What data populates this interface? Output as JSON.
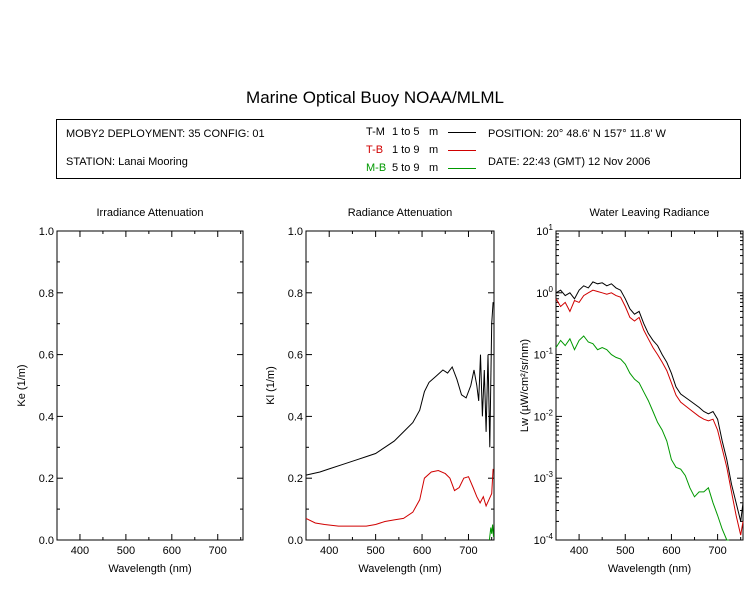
{
  "title": "Marine Optical Buoy NOAA/MLML",
  "info": {
    "deployment": "MOBY2 DEPLOYMENT: 35 CONFIG: 01",
    "station": "STATION: Lanai Mooring",
    "position": "POSITION: 20° 48.6' N   157° 11.8' W",
    "date": "DATE: 22:43 (GMT) 12 Nov 2006"
  },
  "legend": [
    {
      "code": "T-M",
      "range": "1 to 5",
      "unit": "m",
      "color": "#000000"
    },
    {
      "code": "T-B",
      "range": "1 to 9",
      "unit": "m",
      "color": "#d00000"
    },
    {
      "code": "M-B",
      "range": "5 to 9",
      "unit": "m",
      "color": "#009900"
    }
  ],
  "chart_data": [
    {
      "type": "line",
      "title": "Irradiance Attenuation",
      "xlabel": "Wavelength (nm)",
      "ylabel": "Ke  (1/m)",
      "xlim": [
        350,
        755
      ],
      "ylim": [
        0,
        1
      ],
      "xticks": [
        "400",
        "500",
        "600",
        "700"
      ],
      "yticks": [
        "0.0",
        "0.2",
        "0.4",
        "0.6",
        "0.8",
        "1.0"
      ],
      "series": []
    },
    {
      "type": "line",
      "title": "Radiance Attenuation",
      "xlabel": "Wavelength (nm)",
      "ylabel": "Kl  (1/m)",
      "xlim": [
        350,
        755
      ],
      "ylim": [
        0,
        1
      ],
      "xticks": [
        "400",
        "500",
        "600",
        "700"
      ],
      "yticks": [
        "0.0",
        "0.2",
        "0.4",
        "0.6",
        "0.8",
        "1.0"
      ],
      "series": [
        {
          "name": "T-M",
          "color": "#000000",
          "x": [
            350,
            380,
            400,
            430,
            460,
            480,
            500,
            520,
            540,
            560,
            580,
            595,
            605,
            615,
            630,
            645,
            655,
            665,
            675,
            685,
            695,
            705,
            712,
            718,
            722,
            726,
            730,
            734,
            738,
            742,
            746,
            750,
            753
          ],
          "y": [
            0.21,
            0.22,
            0.23,
            0.245,
            0.26,
            0.27,
            0.28,
            0.3,
            0.32,
            0.35,
            0.38,
            0.42,
            0.48,
            0.51,
            0.53,
            0.55,
            0.54,
            0.56,
            0.52,
            0.47,
            0.46,
            0.5,
            0.55,
            0.5,
            0.45,
            0.6,
            0.4,
            0.55,
            0.35,
            0.6,
            0.3,
            0.7,
            0.77
          ]
        },
        {
          "name": "T-B",
          "color": "#d00000",
          "x": [
            350,
            370,
            390,
            420,
            450,
            480,
            500,
            520,
            540,
            560,
            580,
            595,
            605,
            620,
            635,
            650,
            660,
            670,
            680,
            690,
            700,
            710,
            718,
            725,
            732,
            738,
            744,
            750,
            753
          ],
          "y": [
            0.07,
            0.055,
            0.05,
            0.045,
            0.045,
            0.045,
            0.05,
            0.06,
            0.065,
            0.07,
            0.09,
            0.13,
            0.2,
            0.22,
            0.225,
            0.215,
            0.2,
            0.16,
            0.17,
            0.2,
            0.205,
            0.17,
            0.14,
            0.12,
            0.14,
            0.11,
            0.13,
            0.15,
            0.23
          ]
        },
        {
          "name": "M-B",
          "color": "#009900",
          "x": [
            745,
            748,
            750,
            752,
            754
          ],
          "y": [
            0.0,
            0.04,
            0.02,
            0.05,
            0.01
          ]
        }
      ]
    },
    {
      "type": "line",
      "title": "Water Leaving Radiance",
      "xlabel": "Wavelength (nm)",
      "ylabel": "Lw  (µW/cm²/sr/nm)",
      "xscale": "log-y",
      "xlim": [
        350,
        755
      ],
      "ylim": [
        0.0001,
        10
      ],
      "xticks": [
        "400",
        "500",
        "600",
        "700"
      ],
      "yticks": [
        "10⁰",
        "10¹"
      ],
      "ytick_labels": [
        {
          "base": "10",
          "exp": "1"
        },
        {
          "base": "10",
          "exp": "0"
        },
        {
          "base": "10",
          "exp": "-1"
        },
        {
          "base": "10",
          "exp": "-2"
        },
        {
          "base": "10",
          "exp": "-3"
        },
        {
          "base": "10",
          "exp": "-4"
        }
      ],
      "series": [
        {
          "name": "T-M",
          "color": "#000000",
          "x": [
            350,
            360,
            370,
            380,
            390,
            400,
            410,
            420,
            430,
            440,
            450,
            460,
            470,
            480,
            490,
            500,
            510,
            520,
            530,
            540,
            550,
            560,
            570,
            580,
            590,
            600,
            610,
            620,
            640,
            660,
            670,
            680,
            690,
            700,
            710,
            720,
            730,
            740,
            750,
            755
          ],
          "y": [
            1.0,
            1.1,
            0.9,
            1.0,
            0.8,
            1.1,
            1.3,
            1.2,
            1.5,
            1.4,
            1.45,
            1.3,
            1.4,
            1.2,
            1.1,
            0.8,
            0.55,
            0.45,
            0.5,
            0.32,
            0.22,
            0.17,
            0.14,
            0.1,
            0.075,
            0.05,
            0.03,
            0.023,
            0.018,
            0.014,
            0.012,
            0.011,
            0.012,
            0.009,
            0.004,
            0.002,
            0.0008,
            0.0004,
            0.0002,
            0.0004
          ]
        },
        {
          "name": "T-B",
          "color": "#d00000",
          "x": [
            350,
            360,
            370,
            380,
            390,
            400,
            410,
            420,
            430,
            440,
            450,
            460,
            470,
            480,
            490,
            500,
            510,
            520,
            530,
            540,
            550,
            560,
            570,
            580,
            590,
            600,
            610,
            620,
            640,
            660,
            670,
            680,
            690,
            700,
            710,
            720,
            730,
            740,
            750,
            755
          ],
          "y": [
            0.8,
            0.6,
            0.7,
            0.5,
            0.75,
            0.7,
            0.9,
            1.0,
            1.1,
            1.05,
            1.0,
            0.95,
            1.0,
            0.9,
            0.85,
            0.6,
            0.4,
            0.35,
            0.4,
            0.25,
            0.18,
            0.13,
            0.1,
            0.075,
            0.055,
            0.035,
            0.022,
            0.017,
            0.013,
            0.01,
            0.009,
            0.0085,
            0.009,
            0.006,
            0.003,
            0.0015,
            0.0006,
            0.00025,
            0.00012,
            0.0002
          ]
        },
        {
          "name": "M-B",
          "color": "#009900",
          "x": [
            350,
            360,
            370,
            380,
            390,
            400,
            410,
            420,
            430,
            440,
            450,
            460,
            470,
            480,
            490,
            500,
            510,
            520,
            530,
            540,
            550,
            560,
            570,
            580,
            590,
            600,
            610,
            620,
            630,
            640,
            650,
            660,
            670,
            680,
            690,
            700,
            710,
            720,
            725
          ],
          "y": [
            0.13,
            0.17,
            0.14,
            0.18,
            0.12,
            0.17,
            0.2,
            0.16,
            0.15,
            0.12,
            0.13,
            0.12,
            0.1,
            0.09,
            0.085,
            0.07,
            0.05,
            0.04,
            0.035,
            0.025,
            0.018,
            0.012,
            0.008,
            0.006,
            0.004,
            0.002,
            0.0015,
            0.0014,
            0.0011,
            0.0007,
            0.0005,
            0.0006,
            0.0006,
            0.0007,
            0.0004,
            0.00025,
            0.00015,
            0.0001,
            0.0001
          ]
        }
      ]
    }
  ]
}
